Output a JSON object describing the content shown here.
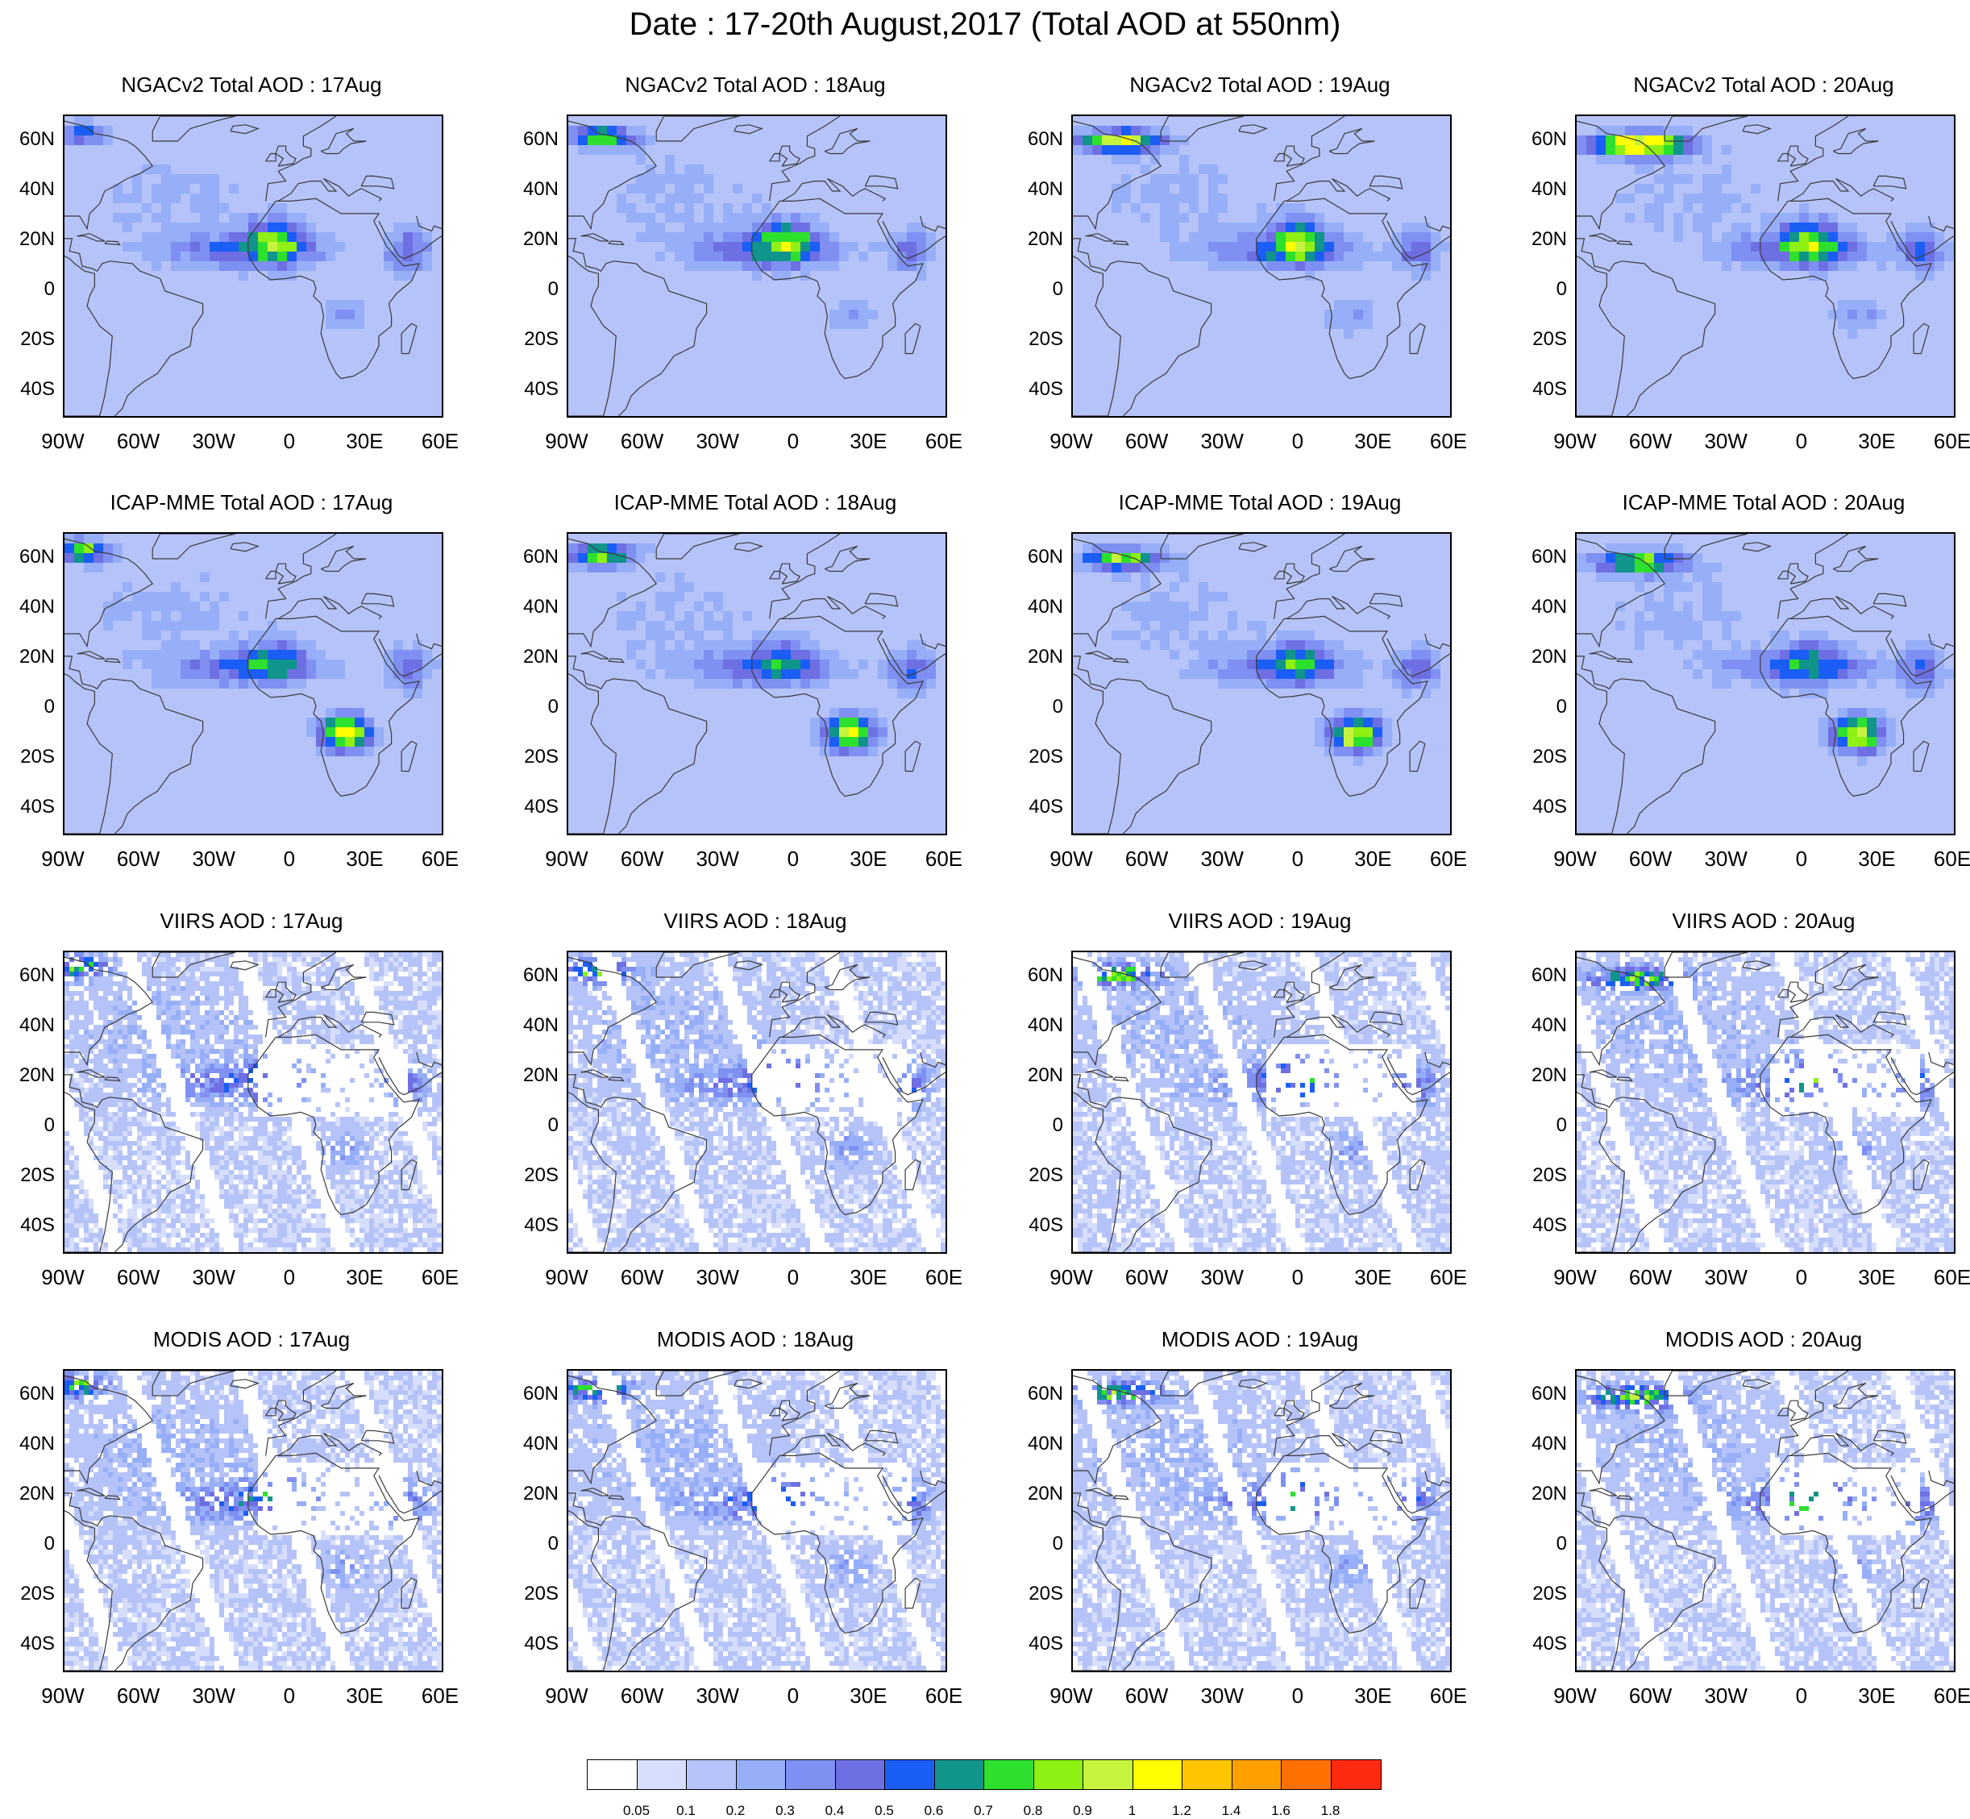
{
  "title": "Date : 17-20th August,2017 (Total AOD at 550nm)",
  "lat_labels": [
    "60N",
    "40N",
    "20N",
    "0",
    "20S",
    "40S"
  ],
  "lon_labels": [
    "90W",
    "60W",
    "30W",
    "0",
    "30E",
    "60E"
  ],
  "rows": [
    {
      "name": "NGACv2",
      "kind": "model",
      "titles": [
        "NGACv2 Total AOD : 17Aug",
        "NGACv2 Total AOD : 18Aug",
        "NGACv2 Total AOD : 19Aug",
        "NGACv2 Total AOD : 20Aug"
      ]
    },
    {
      "name": "ICAP-MME",
      "kind": "model",
      "titles": [
        "ICAP-MME Total AOD : 17Aug",
        "ICAP-MME Total AOD : 18Aug",
        "ICAP-MME Total AOD : 19Aug",
        "ICAP-MME Total AOD : 20Aug"
      ]
    },
    {
      "name": "VIIRS",
      "kind": "satellite",
      "titles": [
        "VIIRS AOD : 17Aug",
        "VIIRS AOD : 18Aug",
        "VIIRS AOD : 19Aug",
        "VIIRS AOD : 20Aug"
      ]
    },
    {
      "name": "MODIS",
      "kind": "satellite",
      "titles": [
        "MODIS AOD : 17Aug",
        "MODIS AOD : 18Aug",
        "MODIS AOD : 19Aug",
        "MODIS AOD : 20Aug"
      ]
    }
  ],
  "colorbar": {
    "colors": [
      "#ffffff",
      "#d6defc",
      "#b6c3f8",
      "#97aff8",
      "#7f90f2",
      "#6f6fe4",
      "#1a5ef5",
      "#10948c",
      "#2ee02e",
      "#8ef013",
      "#c6f43e",
      "#ffff00",
      "#ffc600",
      "#ffa000",
      "#ff7000",
      "#ff2a12"
    ],
    "labels": [
      "0.05",
      "0.1",
      "0.2",
      "0.3",
      "0.4",
      "0.5",
      "0.6",
      "0.7",
      "0.8",
      "0.9",
      "1",
      "1.2",
      "1.4",
      "1.6",
      "1.8"
    ]
  }
}
